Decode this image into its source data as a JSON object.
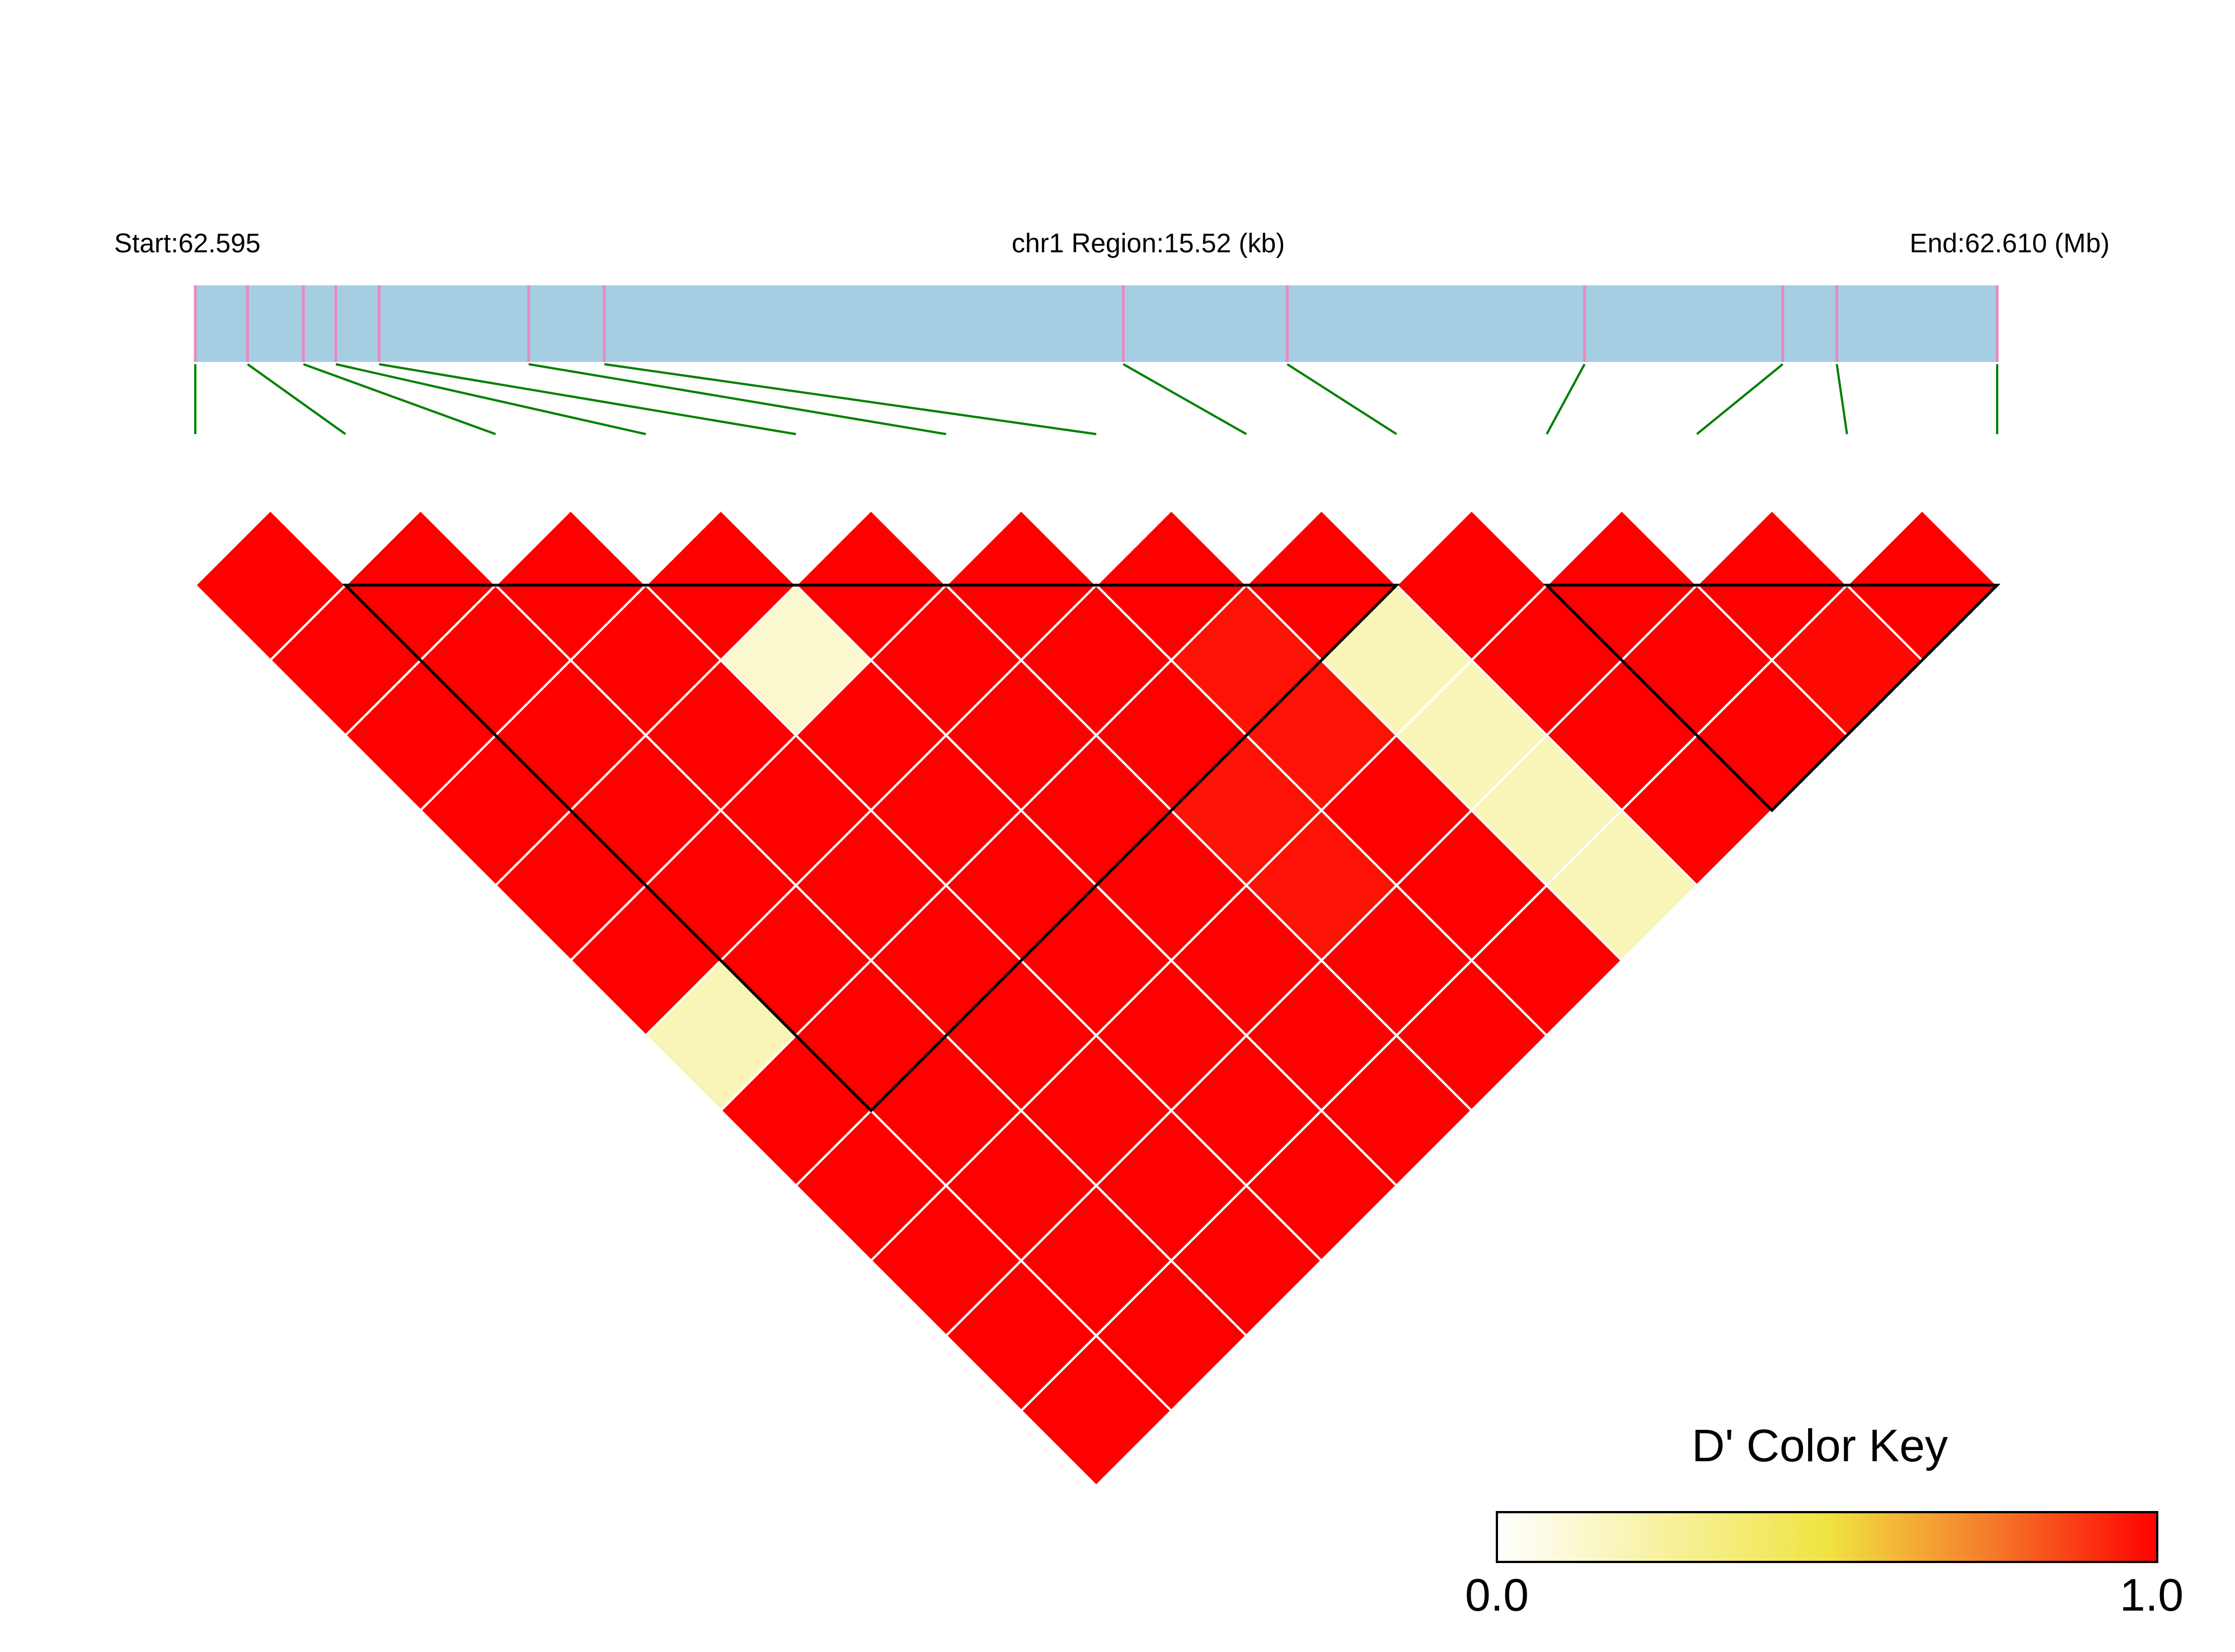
{
  "chart_data": {
    "type": "heatmap",
    "title": "",
    "region": {
      "start_label": "Start:62.595",
      "center_label": "chr1 Region:15.52 (kb)",
      "end_label": "End:62.610 (Mb)"
    },
    "snp_count": 13,
    "snp_positions_fraction": [
      0.0,
      0.029,
      0.06,
      0.078,
      0.102,
      0.185,
      0.227,
      0.515,
      0.606,
      0.771,
      0.881,
      0.911,
      1.0
    ],
    "default_dprime": 1.0,
    "dprime_cells": [
      {
        "i": 0,
        "j": 7,
        "value": 0.3
      },
      {
        "i": 3,
        "j": 5,
        "value": 0.2
      },
      {
        "i": 5,
        "j": 9,
        "value": 0.96
      },
      {
        "i": 5,
        "j": 10,
        "value": 0.96
      },
      {
        "i": 6,
        "j": 8,
        "value": 0.96
      },
      {
        "i": 6,
        "j": 9,
        "value": 0.96
      },
      {
        "i": 7,
        "j": 9,
        "value": 0.3
      },
      {
        "i": 7,
        "j": 10,
        "value": 0.3
      },
      {
        "i": 7,
        "j": 11,
        "value": 0.3
      },
      {
        "i": 7,
        "j": 12,
        "value": 0.3
      },
      {
        "i": 10,
        "j": 12,
        "value": 0.98
      }
    ],
    "blocks": [
      {
        "first": 1,
        "last": 8
      },
      {
        "first": 9,
        "last": 12
      }
    ],
    "colors": {
      "high": "#ff0000",
      "low": "#ffffff",
      "mid": "#f0e442",
      "track": "#a6cee3",
      "snp_tick": "#e78ac3",
      "connector": "#008000",
      "grid": "#ffffff",
      "block_outline": "#000000"
    },
    "color_key": {
      "title": "D' Color Key",
      "min_label": "0.0",
      "max_label": "1.0",
      "range": [
        0,
        1
      ]
    }
  }
}
